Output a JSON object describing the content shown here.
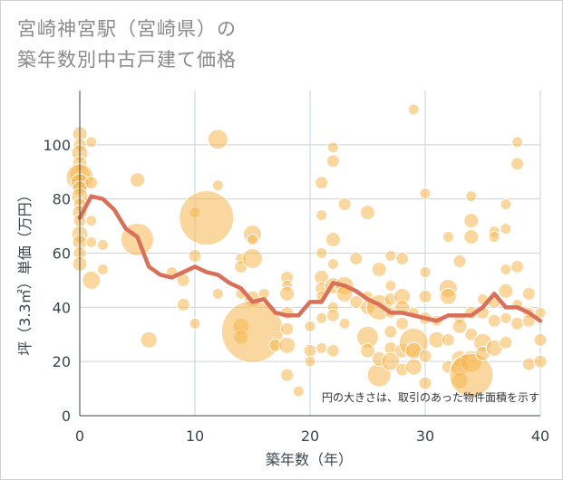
{
  "title": {
    "line1": "宮崎神宮駅（宮崎県）の",
    "line2": "築年数別中古戸建て価格"
  },
  "colors": {
    "bubble": "#f5b74e",
    "line": "#d9705a",
    "grid": "#c8d3dc",
    "axis": "#37474f"
  },
  "chart_data": {
    "type": "scatter",
    "xlabel": "築年数（年）",
    "ylabel": "坪（3.3㎡）単価（万円）",
    "xlim": [
      0,
      40
    ],
    "ylim": [
      0,
      120
    ],
    "xticks": [
      "0",
      "10",
      "20",
      "30",
      "40"
    ],
    "yticks": [
      "0",
      "20",
      "40",
      "60",
      "80",
      "100"
    ],
    "grid": true,
    "note": "円の大きさは、取引のあった物件面積を示す",
    "bubbles": [
      {
        "x": 0,
        "y": 104,
        "r": 8
      },
      {
        "x": 0,
        "y": 100,
        "r": 7
      },
      {
        "x": 0,
        "y": 97,
        "r": 9
      },
      {
        "x": 0,
        "y": 93,
        "r": 8
      },
      {
        "x": 0,
        "y": 89,
        "r": 11
      },
      {
        "x": 0,
        "y": 88,
        "r": 15
      },
      {
        "x": 0,
        "y": 86,
        "r": 10
      },
      {
        "x": 0,
        "y": 84,
        "r": 8
      },
      {
        "x": 0,
        "y": 81,
        "r": 9
      },
      {
        "x": 0,
        "y": 78,
        "r": 7
      },
      {
        "x": 0,
        "y": 75,
        "r": 8
      },
      {
        "x": 0,
        "y": 72,
        "r": 7
      },
      {
        "x": 0,
        "y": 67,
        "r": 9
      },
      {
        "x": 0,
        "y": 64,
        "r": 8
      },
      {
        "x": 0,
        "y": 60,
        "r": 7
      },
      {
        "x": 0,
        "y": 56,
        "r": 8
      },
      {
        "x": 1,
        "y": 101,
        "r": 6
      },
      {
        "x": 1,
        "y": 86,
        "r": 7
      },
      {
        "x": 1,
        "y": 72,
        "r": 6
      },
      {
        "x": 1,
        "y": 64,
        "r": 6
      },
      {
        "x": 1,
        "y": 50,
        "r": 10
      },
      {
        "x": 2,
        "y": 63,
        "r": 6
      },
      {
        "x": 2,
        "y": 54,
        "r": 6
      },
      {
        "x": 5,
        "y": 87,
        "r": 8
      },
      {
        "x": 5,
        "y": 65,
        "r": 18
      },
      {
        "x": 6,
        "y": 28,
        "r": 9
      },
      {
        "x": 8,
        "y": 53,
        "r": 6
      },
      {
        "x": 9,
        "y": 50,
        "r": 7
      },
      {
        "x": 9,
        "y": 41,
        "r": 7
      },
      {
        "x": 10,
        "y": 75,
        "r": 6
      },
      {
        "x": 10,
        "y": 59,
        "r": 7
      },
      {
        "x": 10,
        "y": 34,
        "r": 6
      },
      {
        "x": 11,
        "y": 73,
        "r": 30
      },
      {
        "x": 12,
        "y": 102,
        "r": 11
      },
      {
        "x": 12,
        "y": 85,
        "r": 6
      },
      {
        "x": 12,
        "y": 45,
        "r": 6
      },
      {
        "x": 14,
        "y": 58,
        "r": 6
      },
      {
        "x": 14,
        "y": 55,
        "r": 7
      },
      {
        "x": 14,
        "y": 45,
        "r": 6
      },
      {
        "x": 14,
        "y": 33,
        "r": 9
      },
      {
        "x": 14,
        "y": 29,
        "r": 8
      },
      {
        "x": 15,
        "y": 67,
        "r": 10
      },
      {
        "x": 15,
        "y": 65,
        "r": 6
      },
      {
        "x": 15,
        "y": 58,
        "r": 11
      },
      {
        "x": 15,
        "y": 43,
        "r": 9
      },
      {
        "x": 15,
        "y": 31,
        "r": 34
      },
      {
        "x": 16,
        "y": 45,
        "r": 6
      },
      {
        "x": 17,
        "y": 26,
        "r": 7
      },
      {
        "x": 18,
        "y": 51,
        "r": 7
      },
      {
        "x": 18,
        "y": 48,
        "r": 6
      },
      {
        "x": 18,
        "y": 45,
        "r": 8
      },
      {
        "x": 18,
        "y": 38,
        "r": 7
      },
      {
        "x": 18,
        "y": 32,
        "r": 7
      },
      {
        "x": 18,
        "y": 26,
        "r": 9
      },
      {
        "x": 18,
        "y": 15,
        "r": 7
      },
      {
        "x": 19,
        "y": 9,
        "r": 6
      },
      {
        "x": 20,
        "y": 33,
        "r": 6
      },
      {
        "x": 20,
        "y": 24,
        "r": 7
      },
      {
        "x": 20,
        "y": 20,
        "r": 6
      },
      {
        "x": 21,
        "y": 86,
        "r": 7
      },
      {
        "x": 21,
        "y": 74,
        "r": 6
      },
      {
        "x": 21,
        "y": 60,
        "r": 6
      },
      {
        "x": 21,
        "y": 51,
        "r": 8
      },
      {
        "x": 21,
        "y": 47,
        "r": 7
      },
      {
        "x": 21,
        "y": 44,
        "r": 6
      },
      {
        "x": 21,
        "y": 36,
        "r": 6
      },
      {
        "x": 21,
        "y": 25,
        "r": 6
      },
      {
        "x": 22,
        "y": 99,
        "r": 6
      },
      {
        "x": 22,
        "y": 94,
        "r": 7
      },
      {
        "x": 22,
        "y": 65,
        "r": 8
      },
      {
        "x": 22,
        "y": 56,
        "r": 6
      },
      {
        "x": 22,
        "y": 48,
        "r": 9
      },
      {
        "x": 22,
        "y": 40,
        "r": 6
      },
      {
        "x": 22,
        "y": 37,
        "r": 7
      },
      {
        "x": 22,
        "y": 24,
        "r": 7
      },
      {
        "x": 23,
        "y": 78,
        "r": 7
      },
      {
        "x": 23,
        "y": 48,
        "r": 10
      },
      {
        "x": 23,
        "y": 45,
        "r": 9
      },
      {
        "x": 23,
        "y": 34,
        "r": 6
      },
      {
        "x": 24,
        "y": 58,
        "r": 7
      },
      {
        "x": 24,
        "y": 42,
        "r": 7
      },
      {
        "x": 25,
        "y": 75,
        "r": 8
      },
      {
        "x": 25,
        "y": 44,
        "r": 6
      },
      {
        "x": 25,
        "y": 40,
        "r": 8
      },
      {
        "x": 25,
        "y": 29,
        "r": 12
      },
      {
        "x": 25,
        "y": 24,
        "r": 8
      },
      {
        "x": 26,
        "y": 54,
        "r": 8
      },
      {
        "x": 26,
        "y": 40,
        "r": 14
      },
      {
        "x": 26,
        "y": 15,
        "r": 13
      },
      {
        "x": 26,
        "y": 21,
        "r": 8
      },
      {
        "x": 27,
        "y": 59,
        "r": 6
      },
      {
        "x": 27,
        "y": 48,
        "r": 6
      },
      {
        "x": 27,
        "y": 43,
        "r": 7
      },
      {
        "x": 27,
        "y": 38,
        "r": 6
      },
      {
        "x": 27,
        "y": 31,
        "r": 7
      },
      {
        "x": 27,
        "y": 25,
        "r": 7
      },
      {
        "x": 27,
        "y": 20,
        "r": 10
      },
      {
        "x": 28,
        "y": 58,
        "r": 7
      },
      {
        "x": 28,
        "y": 44,
        "r": 9
      },
      {
        "x": 28,
        "y": 40,
        "r": 8
      },
      {
        "x": 28,
        "y": 34,
        "r": 7
      },
      {
        "x": 28,
        "y": 24,
        "r": 8
      },
      {
        "x": 28,
        "y": 17,
        "r": 7
      },
      {
        "x": 29,
        "y": 113,
        "r": 6
      },
      {
        "x": 29,
        "y": 38,
        "r": 6
      },
      {
        "x": 29,
        "y": 27,
        "r": 16
      },
      {
        "x": 29,
        "y": 24,
        "r": 9
      },
      {
        "x": 29,
        "y": 18,
        "r": 9
      },
      {
        "x": 30,
        "y": 82,
        "r": 6
      },
      {
        "x": 30,
        "y": 53,
        "r": 6
      },
      {
        "x": 30,
        "y": 44,
        "r": 7
      },
      {
        "x": 30,
        "y": 36,
        "r": 7
      },
      {
        "x": 30,
        "y": 22,
        "r": 7
      },
      {
        "x": 30,
        "y": 12,
        "r": 7
      },
      {
        "x": 31,
        "y": 35,
        "r": 6
      },
      {
        "x": 31,
        "y": 28,
        "r": 9
      },
      {
        "x": 32,
        "y": 66,
        "r": 6
      },
      {
        "x": 32,
        "y": 47,
        "r": 10
      },
      {
        "x": 32,
        "y": 44,
        "r": 9
      },
      {
        "x": 32,
        "y": 28,
        "r": 7
      },
      {
        "x": 32,
        "y": 18,
        "r": 7
      },
      {
        "x": 33,
        "y": 57,
        "r": 7
      },
      {
        "x": 33,
        "y": 36,
        "r": 6
      },
      {
        "x": 33,
        "y": 33,
        "r": 8
      },
      {
        "x": 33,
        "y": 21,
        "r": 9
      },
      {
        "x": 33,
        "y": 18,
        "r": 10
      },
      {
        "x": 33,
        "y": 13,
        "r": 9
      },
      {
        "x": 34,
        "y": 81,
        "r": 6
      },
      {
        "x": 34,
        "y": 72,
        "r": 8
      },
      {
        "x": 34,
        "y": 66,
        "r": 8
      },
      {
        "x": 34,
        "y": 38,
        "r": 7
      },
      {
        "x": 34,
        "y": 30,
        "r": 7
      },
      {
        "x": 34,
        "y": 20,
        "r": 12
      },
      {
        "x": 34,
        "y": 15,
        "r": 24
      },
      {
        "x": 35,
        "y": 43,
        "r": 6
      },
      {
        "x": 35,
        "y": 38,
        "r": 7
      },
      {
        "x": 35,
        "y": 27,
        "r": 10
      },
      {
        "x": 35,
        "y": 23,
        "r": 8
      },
      {
        "x": 36,
        "y": 68,
        "r": 6
      },
      {
        "x": 36,
        "y": 66,
        "r": 6
      },
      {
        "x": 36,
        "y": 42,
        "r": 7
      },
      {
        "x": 36,
        "y": 35,
        "r": 7
      },
      {
        "x": 36,
        "y": 25,
        "r": 9
      },
      {
        "x": 37,
        "y": 78,
        "r": 6
      },
      {
        "x": 37,
        "y": 69,
        "r": 6
      },
      {
        "x": 37,
        "y": 54,
        "r": 6
      },
      {
        "x": 37,
        "y": 46,
        "r": 8
      },
      {
        "x": 37,
        "y": 36,
        "r": 6
      },
      {
        "x": 37,
        "y": 27,
        "r": 7
      },
      {
        "x": 38,
        "y": 101,
        "r": 6
      },
      {
        "x": 38,
        "y": 93,
        "r": 7
      },
      {
        "x": 38,
        "y": 55,
        "r": 7
      },
      {
        "x": 38,
        "y": 41,
        "r": 6
      },
      {
        "x": 38,
        "y": 34,
        "r": 7
      },
      {
        "x": 39,
        "y": 45,
        "r": 7
      },
      {
        "x": 39,
        "y": 38,
        "r": 6
      },
      {
        "x": 39,
        "y": 35,
        "r": 7
      },
      {
        "x": 39,
        "y": 19,
        "r": 7
      },
      {
        "x": 40,
        "y": 38,
        "r": 6
      },
      {
        "x": 40,
        "y": 28,
        "r": 7
      },
      {
        "x": 40,
        "y": 20,
        "r": 7
      }
    ],
    "trend": {
      "x": [
        0,
        1,
        2,
        3,
        4,
        5,
        6,
        7,
        8,
        9,
        10,
        11,
        12,
        13,
        14,
        15,
        16,
        17,
        18,
        19,
        20,
        21,
        22,
        23,
        24,
        25,
        26,
        27,
        28,
        29,
        30,
        31,
        32,
        33,
        34,
        35,
        36,
        37,
        38,
        39,
        40
      ],
      "y": [
        73,
        81,
        80,
        76,
        69,
        66,
        55,
        52,
        51,
        53,
        55,
        53,
        52,
        49,
        47,
        42,
        43,
        38,
        37,
        37,
        42,
        42,
        49,
        48,
        46,
        43,
        41,
        38,
        38,
        37,
        36,
        35,
        37,
        37,
        37,
        40,
        45,
        40,
        40,
        38,
        35
      ]
    }
  }
}
